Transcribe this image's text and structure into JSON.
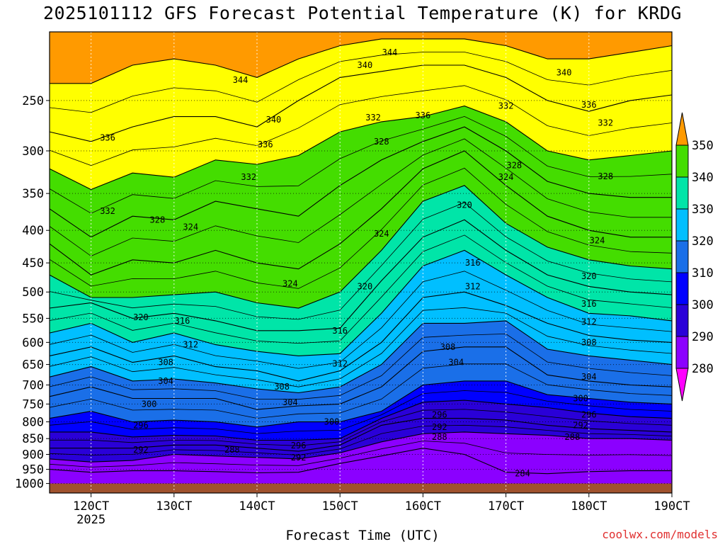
{
  "chart_data": {
    "type": "heatmap",
    "title": "2025101112 GFS Forecast Potential Temperature (K) for KRDG",
    "xlabel": "Forecast Time (UTC)",
    "credit": "coolwx.com/models",
    "y_axis": {
      "quantity": "pressure (hPa)",
      "scale": "log",
      "inverted": true,
      "range": [
        195,
        1035
      ],
      "ticks": [
        250,
        300,
        350,
        400,
        450,
        500,
        550,
        600,
        650,
        700,
        750,
        800,
        850,
        900,
        950,
        1000
      ],
      "tick_labels": [
        "250",
        "300",
        "350",
        "400",
        "450",
        "500",
        "550",
        "600",
        "650",
        "700",
        "750",
        "800",
        "850",
        "900",
        "950",
        "1000"
      ]
    },
    "x_axis": {
      "unit": "day (Oct 2025)",
      "range": [
        11.5,
        19.0
      ],
      "ticks": [
        12,
        13,
        14,
        15,
        16,
        17,
        18,
        19
      ],
      "tick_labels": [
        "120CT",
        "130CT",
        "140CT",
        "150CT",
        "160CT",
        "170CT",
        "180CT",
        "190CT"
      ],
      "year_label": "2025"
    },
    "grid": true,
    "colorbar": {
      "levels": [
        280,
        290,
        300,
        310,
        320,
        330,
        340,
        350
      ],
      "labels": [
        "280",
        "290",
        "300",
        "310",
        "320",
        "330",
        "340",
        "350"
      ],
      "colors": [
        "#ff00ff",
        "#8b00ff",
        "#2a00d8",
        "#0000ff",
        "#1a6fe8",
        "#00bfff",
        "#00e5a8",
        "#44dd00",
        "#ffff00",
        "#ff9a00"
      ]
    },
    "ground_color": "#a0522d",
    "x_times": [
      11.5,
      12.0,
      12.5,
      13.0,
      13.5,
      14.0,
      14.5,
      15.0,
      15.5,
      16.0,
      16.5,
      17.0,
      17.5,
      18.0,
      18.5,
      19.0
    ],
    "theta_levels": [
      284,
      288,
      292,
      296,
      300,
      304,
      308,
      312,
      316,
      320,
      324,
      328,
      332,
      336,
      340,
      344
    ],
    "isentrope_pressures": [
      [
        950,
        960,
        955,
        955,
        958,
        962,
        960,
        930,
        905,
        880,
        900,
        960,
        965,
        958,
        955,
        955
      ],
      [
        915,
        925,
        920,
        900,
        905,
        910,
        915,
        895,
        860,
        835,
        830,
        835,
        840,
        850,
        850,
        855
      ],
      [
        880,
        880,
        880,
        870,
        870,
        880,
        890,
        870,
        810,
        790,
        790,
        795,
        810,
        820,
        825,
        830
      ],
      [
        830,
        830,
        845,
        840,
        842,
        855,
        855,
        850,
        790,
        745,
        740,
        750,
        760,
        775,
        785,
        790
      ],
      [
        790,
        770,
        800,
        795,
        800,
        815,
        800,
        800,
        770,
        700,
        690,
        690,
        725,
        735,
        745,
        750
      ],
      [
        730,
        705,
        735,
        735,
        735,
        765,
        755,
        750,
        705,
        620,
        610,
        610,
        675,
        690,
        700,
        705
      ],
      [
        680,
        655,
        690,
        685,
        695,
        710,
        720,
        705,
        650,
        560,
        560,
        555,
        615,
        630,
        640,
        650
      ],
      [
        630,
        610,
        645,
        630,
        655,
        665,
        690,
        665,
        600,
        510,
        500,
        525,
        560,
        585,
        595,
        600
      ],
      [
        580,
        560,
        600,
        580,
        605,
        620,
        630,
        625,
        540,
        455,
        430,
        470,
        510,
        540,
        545,
        555
      ],
      [
        530,
        520,
        550,
        540,
        555,
        575,
        575,
        570,
        480,
        410,
        385,
        430,
        470,
        490,
        500,
        505
      ],
      [
        470,
        510,
        510,
        505,
        500,
        520,
        530,
        500,
        430,
        360,
        340,
        390,
        425,
        445,
        455,
        460
      ],
      [
        420,
        470,
        445,
        450,
        430,
        450,
        460,
        420,
        370,
        320,
        300,
        340,
        380,
        400,
        410,
        410
      ],
      [
        370,
        410,
        380,
        385,
        360,
        370,
        380,
        340,
        310,
        290,
        275,
        300,
        335,
        350,
        355,
        355
      ],
      [
        320,
        345,
        325,
        330,
        310,
        315,
        305,
        280,
        270,
        265,
        255,
        270,
        300,
        310,
        305,
        300
      ],
      [
        280,
        290,
        275,
        265,
        265,
        275,
        250,
        230,
        225,
        220,
        220,
        230,
        250,
        260,
        250,
        245
      ],
      [
        235,
        235,
        220,
        215,
        220,
        230,
        215,
        205,
        200,
        200,
        200,
        205,
        215,
        215,
        210,
        205
      ]
    ],
    "contour_labels": [
      {
        "text": "344",
        "x": 13.8,
        "p": 232
      },
      {
        "text": "344",
        "x": 15.6,
        "p": 210
      },
      {
        "text": "340",
        "x": 15.3,
        "p": 220
      },
      {
        "text": "340",
        "x": 14.2,
        "p": 268
      },
      {
        "text": "340",
        "x": 17.7,
        "p": 226
      },
      {
        "text": "336",
        "x": 12.2,
        "p": 286
      },
      {
        "text": "336",
        "x": 14.1,
        "p": 293
      },
      {
        "text": "336",
        "x": 16.0,
        "p": 264
      },
      {
        "text": "336",
        "x": 18.0,
        "p": 254
      },
      {
        "text": "332",
        "x": 13.9,
        "p": 330
      },
      {
        "text": "332",
        "x": 15.4,
        "p": 266
      },
      {
        "text": "332",
        "x": 17.0,
        "p": 255
      },
      {
        "text": "332",
        "x": 18.2,
        "p": 271
      },
      {
        "text": "332",
        "x": 12.2,
        "p": 373
      },
      {
        "text": "328",
        "x": 15.5,
        "p": 290
      },
      {
        "text": "328",
        "x": 17.1,
        "p": 316
      },
      {
        "text": "328",
        "x": 18.2,
        "p": 329
      },
      {
        "text": "328",
        "x": 12.8,
        "p": 385
      },
      {
        "text": "324",
        "x": 13.2,
        "p": 395
      },
      {
        "text": "324",
        "x": 17.0,
        "p": 330
      },
      {
        "text": "324",
        "x": 18.1,
        "p": 415
      },
      {
        "text": "324",
        "x": 15.5,
        "p": 405
      },
      {
        "text": "324",
        "x": 14.4,
        "p": 485
      },
      {
        "text": "320",
        "x": 15.3,
        "p": 490
      },
      {
        "text": "320",
        "x": 16.5,
        "p": 365
      },
      {
        "text": "320",
        "x": 18.0,
        "p": 472
      },
      {
        "text": "320",
        "x": 12.6,
        "p": 548
      },
      {
        "text": "316",
        "x": 13.1,
        "p": 555
      },
      {
        "text": "316",
        "x": 16.6,
        "p": 450
      },
      {
        "text": "316",
        "x": 18.0,
        "p": 522
      },
      {
        "text": "316",
        "x": 15.0,
        "p": 575
      },
      {
        "text": "312",
        "x": 13.2,
        "p": 605
      },
      {
        "text": "312",
        "x": 16.6,
        "p": 490
      },
      {
        "text": "312",
        "x": 18.0,
        "p": 557
      },
      {
        "text": "312",
        "x": 15.0,
        "p": 648
      },
      {
        "text": "308",
        "x": 12.9,
        "p": 645
      },
      {
        "text": "308",
        "x": 14.3,
        "p": 705
      },
      {
        "text": "308",
        "x": 16.3,
        "p": 610
      },
      {
        "text": "308",
        "x": 18.0,
        "p": 600
      },
      {
        "text": "304",
        "x": 12.9,
        "p": 690
      },
      {
        "text": "304",
        "x": 14.4,
        "p": 745
      },
      {
        "text": "304",
        "x": 16.4,
        "p": 645
      },
      {
        "text": "304",
        "x": 18.0,
        "p": 680
      },
      {
        "text": "300",
        "x": 12.7,
        "p": 750
      },
      {
        "text": "300",
        "x": 14.9,
        "p": 800
      },
      {
        "text": "300",
        "x": 17.9,
        "p": 735
      },
      {
        "text": "296",
        "x": 12.6,
        "p": 810
      },
      {
        "text": "296",
        "x": 14.5,
        "p": 872
      },
      {
        "text": "296",
        "x": 16.2,
        "p": 780
      },
      {
        "text": "296",
        "x": 18.0,
        "p": 780
      },
      {
        "text": "292",
        "x": 12.6,
        "p": 885
      },
      {
        "text": "292",
        "x": 14.5,
        "p": 910
      },
      {
        "text": "292",
        "x": 16.2,
        "p": 815
      },
      {
        "text": "292",
        "x": 17.9,
        "p": 810
      },
      {
        "text": "288",
        "x": 13.7,
        "p": 885
      },
      {
        "text": "288",
        "x": 16.2,
        "p": 845
      },
      {
        "text": "288",
        "x": 17.8,
        "p": 845
      },
      {
        "text": "284",
        "x": 17.2,
        "p": 965
      }
    ]
  }
}
